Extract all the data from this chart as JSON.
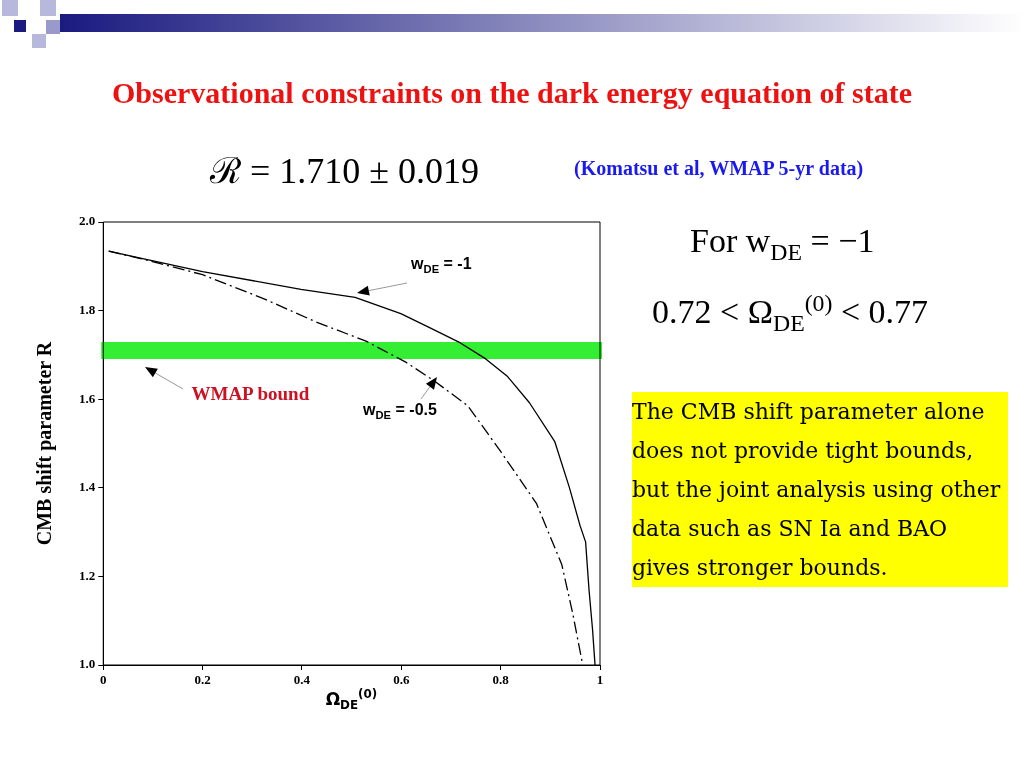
{
  "chart_data": {
    "type": "line",
    "title": "Observational constraints on the dark energy equation of state",
    "subtitle": "ℛ = 1.710 ± 0.019",
    "xlabel": "Ω$_{DE}$$^{(0)}$",
    "ylabel": "CMB shift parameter R",
    "xlim": [
      0,
      1
    ],
    "xticks": [
      0,
      0.2,
      0.4,
      0.6,
      0.8,
      1
    ],
    "ylim": [
      1,
      2
    ],
    "yticks": [
      {
        "value": 1,
        "label": "1.0"
      },
      1.2,
      1.4,
      1.6,
      1.8,
      {
        "value": 2,
        "label": "2.0"
      }
    ],
    "grid": false,
    "legend": false,
    "marker": "none",
    "series": [
      {
        "name": "w$_{DE}$ = -1",
        "color": "#000000",
        "line_style": "solid",
        "x": [
          0.011,
          0.2,
          0.398,
          0.507,
          0.599,
          0.66,
          0.719,
          0.77,
          0.814,
          0.858,
          0.909,
          0.938,
          0.96,
          0.971,
          0.978,
          0.985,
          0.99
        ],
        "values": [
          1.934,
          1.888,
          1.848,
          1.83,
          1.793,
          1.76,
          1.727,
          1.691,
          1.651,
          1.592,
          1.504,
          1.402,
          1.314,
          1.278,
          1.168,
          1.08,
          1.0
        ]
      },
      {
        "name": "w$_{DE}$ = -0.5",
        "color": "#000000",
        "line_style": "dashed",
        "x": [
          0.011,
          0.077,
          0.2,
          0.325,
          0.427,
          0.529,
          0.61,
          0.668,
          0.734,
          0.8,
          0.872,
          0.923,
          0.945,
          0.964
        ],
        "values": [
          1.934,
          1.917,
          1.881,
          1.826,
          1.775,
          1.731,
          1.683,
          1.64,
          1.585,
          1.482,
          1.365,
          1.227,
          1.117,
          1.007
        ]
      }
    ],
    "bands": [
      {
        "axis": "y",
        "from": 1.691,
        "to": 1.729,
        "label": "WMAP bound",
        "color": "#33ee33"
      }
    ],
    "annotations": [
      "(Komatsu et al, WMAP 5-yr data)",
      "For w$_{DE}$ = −1",
      "0.72 < Ω$_{DE}$$^{(0)}$ < 0.77",
      "The CMB shift parameter alone does not provide tight bounds, but the joint analysis using other data such as SN Ia and BAO gives stronger bounds."
    ]
  }
}
